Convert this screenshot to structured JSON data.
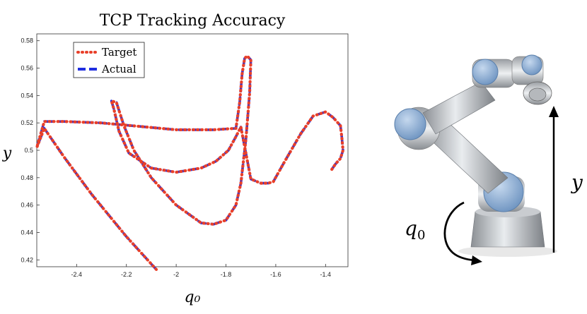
{
  "chart_data": {
    "type": "line",
    "title": "TCP Tracking Accuracy",
    "xlabel": "q₀",
    "ylabel": "y",
    "xlim": [
      -2.56,
      -1.31
    ],
    "ylim": [
      0.415,
      0.585
    ],
    "xticks": [
      -2.4,
      -2.2,
      -2.0,
      -1.8,
      -1.6,
      -1.4
    ],
    "xtick_labels": [
      "-2.4",
      "-2.2",
      "-2",
      "-1.8",
      "-1.6",
      "-1.4"
    ],
    "yticks": [
      0.42,
      0.44,
      0.46,
      0.48,
      0.5,
      0.52,
      0.54,
      0.56,
      0.58
    ],
    "ytick_labels": [
      "0.42",
      "0.44",
      "0.46",
      "0.48",
      "0.5",
      "0.52",
      "0.54",
      "0.56",
      "0.58"
    ],
    "grid": false,
    "legend_position": "top-left",
    "series": [
      {
        "name": "Target",
        "color": "#e8402a",
        "style": "dotted"
      },
      {
        "name": "Actual",
        "color": "#1f2ee0",
        "style": "dashed"
      }
    ],
    "x": [
      -2.08,
      -2.2,
      -2.34,
      -2.45,
      -2.53,
      -2.56,
      -2.53,
      -2.45,
      -2.3,
      -2.0,
      -1.85,
      -1.76,
      -1.745,
      -1.735,
      -1.725,
      -1.715,
      -1.7,
      -1.705,
      -1.72,
      -1.74,
      -1.76,
      -1.8,
      -1.85,
      -1.9,
      -2.0,
      -2.1,
      -2.17,
      -2.21,
      -2.24,
      -2.26,
      -2.25,
      -2.23,
      -2.19,
      -2.1,
      -2.0,
      -1.9,
      -1.84,
      -1.79,
      -1.76,
      -1.74,
      -1.7,
      -1.66,
      -1.63,
      -1.61,
      -1.57,
      -1.5,
      -1.45,
      -1.4,
      -1.37,
      -1.34,
      -1.335,
      -1.33,
      -1.34,
      -1.36,
      -1.375
    ],
    "y": [
      0.413,
      0.437,
      0.468,
      0.495,
      0.516,
      0.502,
      0.521,
      0.521,
      0.52,
      0.515,
      0.515,
      0.516,
      0.535,
      0.556,
      0.567,
      0.569,
      0.566,
      0.542,
      0.508,
      0.476,
      0.46,
      0.449,
      0.446,
      0.447,
      0.46,
      0.48,
      0.5,
      0.518,
      0.535,
      0.536,
      0.53,
      0.514,
      0.498,
      0.487,
      0.484,
      0.487,
      0.492,
      0.5,
      0.51,
      0.517,
      0.479,
      0.476,
      0.476,
      0.477,
      0.49,
      0.512,
      0.525,
      0.528,
      0.524,
      0.518,
      0.51,
      0.5,
      0.494,
      0.49,
      0.486
    ]
  },
  "robot_labels": {
    "q_symbol": "q",
    "q_subscript": "0",
    "y_symbol": "y"
  }
}
